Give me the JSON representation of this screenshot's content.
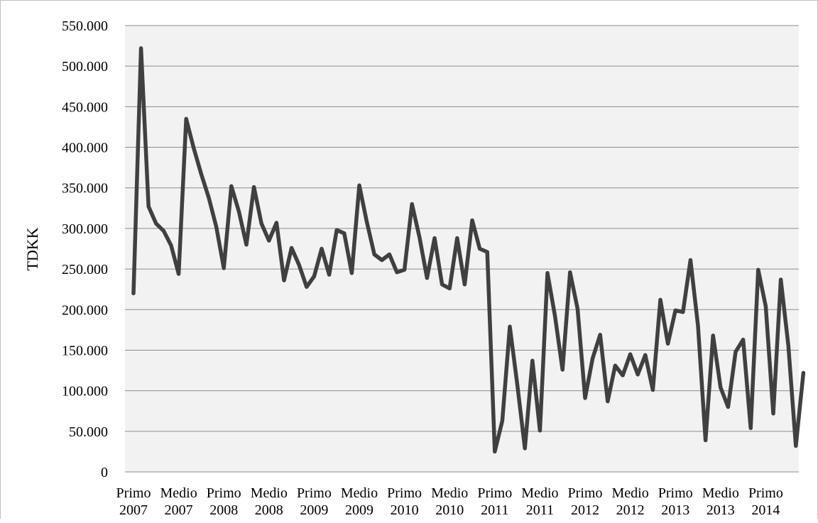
{
  "chart_data": {
    "type": "line",
    "title": "",
    "xlabel": "",
    "ylabel": "TDKK",
    "ylim": [
      0,
      550000
    ],
    "yticks": [
      {
        "value": 0,
        "label": "0"
      },
      {
        "value": 50000,
        "label": "50.000"
      },
      {
        "value": 100000,
        "label": "100.000"
      },
      {
        "value": 150000,
        "label": "150.000"
      },
      {
        "value": 200000,
        "label": "200.000"
      },
      {
        "value": 250000,
        "label": "250.000"
      },
      {
        "value": 300000,
        "label": "300.000"
      },
      {
        "value": 350000,
        "label": "350.000"
      },
      {
        "value": 400000,
        "label": "400.000"
      },
      {
        "value": 450000,
        "label": "450.000"
      },
      {
        "value": 500000,
        "label": "500.000"
      },
      {
        "value": 550000,
        "label": "550.000"
      }
    ],
    "xtick_labels": [
      {
        "index": 0,
        "line1": "Primo",
        "line2": "2007"
      },
      {
        "index": 6,
        "line1": "Medio",
        "line2": "2007"
      },
      {
        "index": 12,
        "line1": "Primo",
        "line2": "2008"
      },
      {
        "index": 18,
        "line1": "Medio",
        "line2": "2008"
      },
      {
        "index": 24,
        "line1": "Primo",
        "line2": "2009"
      },
      {
        "index": 30,
        "line1": "Medio",
        "line2": "2009"
      },
      {
        "index": 36,
        "line1": "Primo",
        "line2": "2010"
      },
      {
        "index": 42,
        "line1": "Medio",
        "line2": "2010"
      },
      {
        "index": 48,
        "line1": "Primo",
        "line2": "2011"
      },
      {
        "index": 54,
        "line1": "Medio",
        "line2": "2011"
      },
      {
        "index": 60,
        "line1": "Primo",
        "line2": "2012"
      },
      {
        "index": 66,
        "line1": "Medio",
        "line2": "2012"
      },
      {
        "index": 72,
        "line1": "Primo",
        "line2": "2013"
      },
      {
        "index": 78,
        "line1": "Medio",
        "line2": "2013"
      },
      {
        "index": 84,
        "line1": "Primo",
        "line2": "2014"
      }
    ],
    "grid": true,
    "legend": "none",
    "colors": {
      "line": "#404040",
      "plot_bg": "#f2f2f2",
      "grid": "#8c8c8c",
      "frame": "#bfbfbf"
    },
    "series": [
      {
        "values": [
          220000,
          522000,
          327000,
          306000,
          297000,
          279000,
          244000,
          435000,
          399000,
          367000,
          338000,
          302000,
          251000,
          352000,
          321000,
          280000,
          351000,
          306000,
          285000,
          307000,
          236000,
          276000,
          255000,
          228000,
          241000,
          275000,
          243000,
          298000,
          294000,
          245000,
          353000,
          308000,
          268000,
          261000,
          268000,
          246000,
          249000,
          330000,
          289000,
          239000,
          288000,
          231000,
          226000,
          288000,
          231000,
          310000,
          275000,
          271000,
          25000,
          63000,
          179000,
          107000,
          29000,
          137000,
          51000,
          245000,
          192000,
          126000,
          246000,
          201000,
          91000,
          140000,
          169000,
          87000,
          131000,
          119000,
          145000,
          120000,
          144000,
          101000,
          212000,
          158000,
          199000,
          197000,
          261000,
          180000,
          39000,
          168000,
          104000,
          80000,
          148000,
          163000,
          54000,
          249000,
          204000,
          72000,
          237000,
          156000,
          32000,
          122000
        ]
      }
    ]
  }
}
